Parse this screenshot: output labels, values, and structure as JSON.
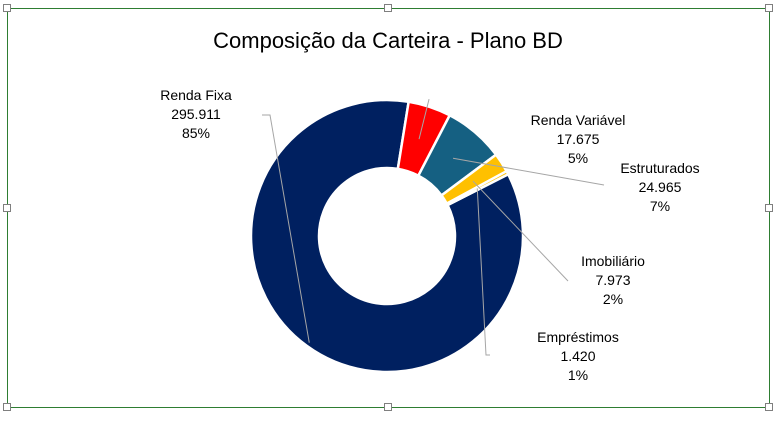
{
  "chart_data": {
    "type": "pie",
    "title": "Composição da Carteira - Plano BD",
    "donut": true,
    "legend": "none",
    "slices": [
      {
        "name": "Renda Fixa",
        "value_label": "295.911",
        "value": 295911,
        "pct_label": "85%",
        "color": "#002060"
      },
      {
        "name": "Renda Variável",
        "value_label": "17.675",
        "value": 17675,
        "pct_label": "5%",
        "color": "#FF0000"
      },
      {
        "name": "Estruturados",
        "value_label": "24.965",
        "value": 24965,
        "pct_label": "7%",
        "color": "#156082"
      },
      {
        "name": "Imobiliário",
        "value_label": "7.973",
        "value": 7973,
        "pct_label": "2%",
        "color": "#FFC000"
      },
      {
        "name": "Empréstimos",
        "value_label": "1.420",
        "value": 1420,
        "pct_label": "1%",
        "color": "#FFC000"
      }
    ]
  },
  "colors": {
    "frame_border": "#2E7D32",
    "handle_border": "#7f7f7f",
    "leader_line": "#a6a6a6",
    "slice_border": "#ffffff"
  }
}
